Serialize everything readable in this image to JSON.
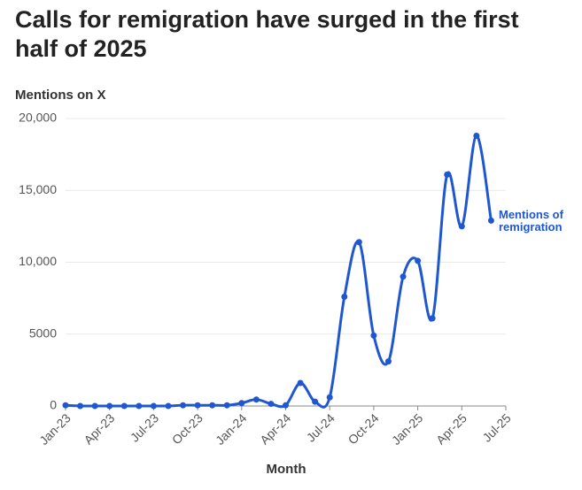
{
  "chart_data": {
    "type": "line",
    "title": "Calls for remigration have surged in the first half of 2025",
    "y_label": "Mentions on X",
    "x_label": "Month",
    "x": [
      "2023-01",
      "2023-02",
      "2023-03",
      "2023-04",
      "2023-05",
      "2023-06",
      "2023-07",
      "2023-08",
      "2023-09",
      "2023-10",
      "2023-11",
      "2023-12",
      "2024-01",
      "2024-02",
      "2024-03",
      "2024-04",
      "2024-05",
      "2024-06",
      "2024-07",
      "2024-08",
      "2024-09",
      "2024-10",
      "2024-11",
      "2024-12",
      "2025-01",
      "2025-02",
      "2025-03",
      "2025-04",
      "2025-05",
      "2025-06"
    ],
    "series": [
      {
        "name": "Mentions of remigration",
        "color": "#1f57d0",
        "values": [
          50,
          0,
          0,
          0,
          0,
          0,
          0,
          0,
          50,
          50,
          50,
          50,
          200,
          450,
          150,
          50,
          1600,
          300,
          600,
          7600,
          11400,
          4900,
          3100,
          9000,
          10100,
          6100,
          16100,
          12500,
          18800,
          12900
        ]
      }
    ],
    "xlim": [
      "2023-01",
      "2025-07"
    ],
    "xticks": [
      {
        "value": "2023-01",
        "label": "Jan-23"
      },
      {
        "value": "2023-04",
        "label": "Apr-23"
      },
      {
        "value": "2023-07",
        "label": "Jul-23"
      },
      {
        "value": "2023-10",
        "label": "Oct-23"
      },
      {
        "value": "2024-01",
        "label": "Jan-24"
      },
      {
        "value": "2024-04",
        "label": "Apr-24"
      },
      {
        "value": "2024-07",
        "label": "Jul-24"
      },
      {
        "value": "2024-10",
        "label": "Oct-24"
      },
      {
        "value": "2025-01",
        "label": "Jan-25"
      },
      {
        "value": "2025-04",
        "label": "Apr-25"
      },
      {
        "value": "2025-07",
        "label": "Jul-25"
      }
    ],
    "ylim": [
      0,
      20000
    ],
    "yticks": [
      0,
      5000,
      {
        "value": 10000,
        "label": "10,000"
      },
      {
        "value": 15000,
        "label": "15,000"
      },
      {
        "value": 20000,
        "label": "20,000"
      }
    ],
    "grid": true
  }
}
